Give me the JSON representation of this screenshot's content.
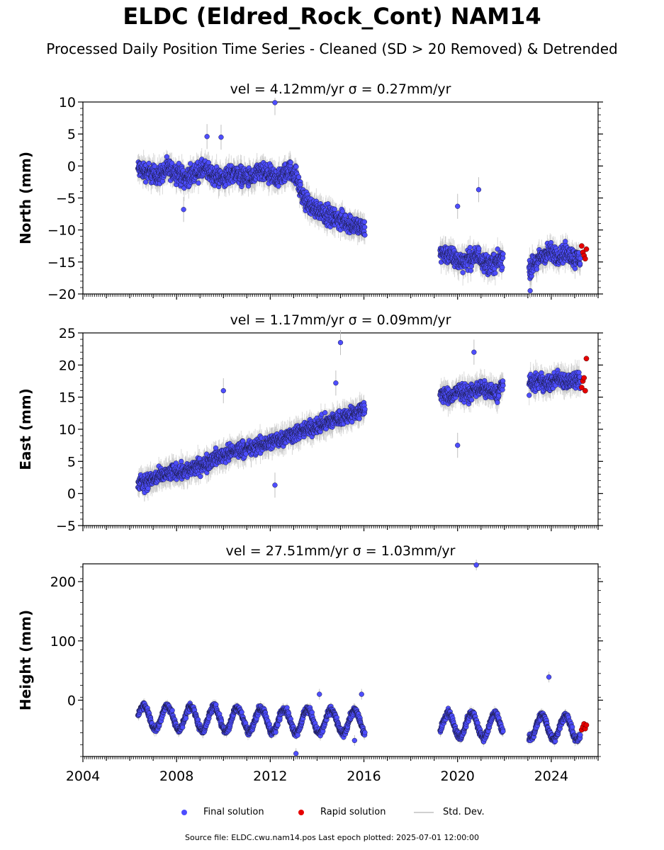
{
  "title": "ELDC (Eldred_Rock_Cont) NAM14",
  "subtitle": "Processed Daily Position Time Series - Cleaned (SD > 20 Removed) & Detrended",
  "source_note": "Source file: ELDC.cwu.nam14.pos  Last epoch plotted: 2025-07-01 12:00:00",
  "legend": {
    "final_label": "Final solution",
    "rapid_label": "Rapid solution",
    "std_label": "Std. Dev."
  },
  "colors": {
    "final": "#4d4dff",
    "rapid": "#e60000",
    "std": "#bfbfbf",
    "edge": "#1a1a40"
  },
  "chart_data": [
    {
      "type": "scatter",
      "panel": "north",
      "title": "vel = 4.12mm/yr   σ = 0.27mm/yr",
      "ylabel": "North (mm)",
      "xlabel": "",
      "xlim": [
        2004,
        2026
      ],
      "ylim": [
        -20,
        10
      ],
      "yticks": [
        -20,
        -15,
        -10,
        -5,
        0,
        5,
        10
      ],
      "ytick_labels": [
        "−20",
        "−15",
        "−10",
        "−5",
        "0",
        "5",
        "10"
      ],
      "series": [
        {
          "name": "Final solution",
          "x": [
            2006.4,
            2006.8,
            2007.2,
            2007.6,
            2008.0,
            2008.4,
            2008.8,
            2009.2,
            2009.6,
            2010.0,
            2010.4,
            2010.8,
            2011.2,
            2011.6,
            2012.0,
            2012.4,
            2012.8,
            2013.1,
            2013.4,
            2013.8,
            2014.2,
            2014.6,
            2015.0,
            2015.4,
            2015.8,
            2016.0,
            2019.3,
            2019.7,
            2020.1,
            2020.5,
            2020.9,
            2021.3,
            2021.7,
            2021.9,
            2023.1,
            2023.5,
            2023.9,
            2024.3,
            2024.7,
            2025.0
          ],
          "y": [
            -0.5,
            -1.0,
            -1.5,
            -0.5,
            -1.0,
            -2.0,
            -1.0,
            -0.5,
            -1.5,
            -2.0,
            -1.0,
            -1.5,
            -2.0,
            -1.0,
            -1.5,
            -2.0,
            -0.5,
            -1.5,
            -5.0,
            -6.5,
            -7.0,
            -8.0,
            -8.5,
            -9.0,
            -9.5,
            -10.0,
            -13.5,
            -14.0,
            -15.0,
            -14.5,
            -14.0,
            -15.5,
            -15.0,
            -14.5,
            -16.0,
            -14.5,
            -13.5,
            -14.0,
            -13.5,
            -14.5
          ]
        },
        {
          "name": "Rapid solution",
          "x": [
            2025.3,
            2025.35,
            2025.4,
            2025.45,
            2025.5
          ],
          "y": [
            -12.5,
            -13.5,
            -14.0,
            -14.5,
            -13.0
          ]
        }
      ],
      "outliers": {
        "x": [
          2012.2,
          2009.3,
          2009.9,
          2008.3,
          2020.0,
          2020.9,
          2023.1
        ],
        "y": [
          9.9,
          4.6,
          4.5,
          -6.8,
          -6.3,
          -3.7,
          -19.5
        ]
      }
    },
    {
      "type": "scatter",
      "panel": "east",
      "title": "vel = 1.17mm/yr   σ = 0.09mm/yr",
      "ylabel": "East (mm)",
      "xlabel": "",
      "xlim": [
        2004,
        2026
      ],
      "ylim": [
        -5,
        25
      ],
      "yticks": [
        -5,
        0,
        5,
        10,
        15,
        20,
        25
      ],
      "ytick_labels": [
        "−5",
        "0",
        "5",
        "10",
        "15",
        "20",
        "25"
      ],
      "series": [
        {
          "name": "Final solution",
          "x": [
            2006.4,
            2006.8,
            2007.2,
            2007.6,
            2008.0,
            2008.4,
            2008.8,
            2009.2,
            2009.6,
            2010.0,
            2010.4,
            2010.8,
            2011.2,
            2011.6,
            2012.0,
            2012.4,
            2012.8,
            2013.2,
            2013.6,
            2014.0,
            2014.4,
            2014.8,
            2015.2,
            2015.6,
            2016.0,
            2019.3,
            2019.7,
            2020.1,
            2020.5,
            2020.9,
            2021.3,
            2021.7,
            2021.9,
            2023.1,
            2023.5,
            2023.9,
            2024.3,
            2024.7,
            2025.0
          ],
          "y": [
            1.5,
            2.0,
            2.5,
            3.0,
            3.5,
            3.5,
            4.0,
            4.5,
            5.5,
            6.0,
            6.5,
            7.0,
            7.0,
            7.5,
            8.0,
            8.5,
            9.0,
            9.5,
            10.0,
            10.5,
            11.0,
            11.5,
            12.0,
            12.5,
            13.0,
            15.5,
            15.0,
            16.0,
            15.5,
            16.5,
            16.0,
            15.5,
            17.0,
            17.0,
            17.5,
            17.0,
            18.0,
            17.5,
            17.5
          ]
        },
        {
          "name": "Rapid solution",
          "x": [
            2025.3,
            2025.35,
            2025.4,
            2025.45,
            2025.5
          ],
          "y": [
            16.5,
            17.5,
            18.0,
            16.0,
            21.0
          ]
        }
      ],
      "outliers": {
        "x": [
          2015.0,
          2014.8,
          2010.0,
          2012.2,
          2020.0,
          2020.7
        ],
        "y": [
          23.5,
          17.2,
          16.0,
          1.3,
          7.5,
          22.0
        ]
      }
    },
    {
      "type": "scatter",
      "panel": "height",
      "title": "vel = 27.51mm/yr   σ = 1.03mm/yr",
      "ylabel": "Height (mm)",
      "xlabel": "",
      "xlim": [
        2004,
        2026
      ],
      "ylim": [
        -95,
        230
      ],
      "yticks": [
        0,
        100,
        200
      ],
      "ytick_labels": [
        "0",
        "100",
        "200"
      ],
      "xticks": [
        2004,
        2008,
        2012,
        2016,
        2020,
        2024
      ],
      "xtick_labels": [
        "2004",
        "2008",
        "2012",
        "2016",
        "2020",
        "2024"
      ],
      "series": [
        {
          "name": "Final solution",
          "seasonal": {
            "mean": -28,
            "amplitude": 20,
            "trend": -1.0
          }
        },
        {
          "name": "Rapid solution",
          "x": [
            2025.3,
            2025.35,
            2025.4,
            2025.45,
            2025.5
          ],
          "y": [
            -50,
            -45,
            -40,
            -48,
            -42
          ]
        }
      ],
      "outliers": {
        "x": [
          2020.8,
          2023.9,
          2013.1,
          2014.1,
          2015.9,
          2015.6
        ],
        "y": [
          228,
          39,
          -90,
          10,
          10,
          -68
        ]
      }
    }
  ]
}
